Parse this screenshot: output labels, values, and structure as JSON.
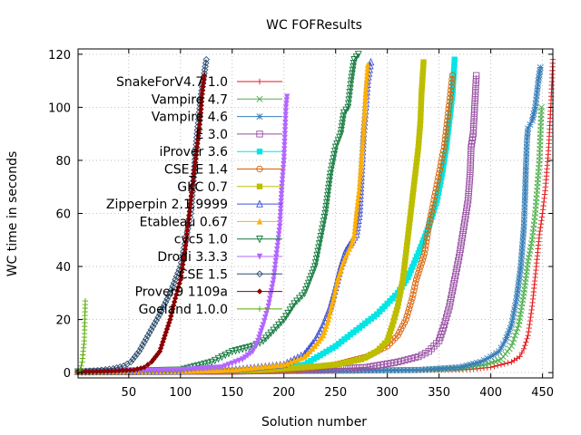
{
  "chart_data": {
    "type": "line",
    "title": "WC FOFResults",
    "xlabel": "Solution number",
    "ylabel": "WC time in seconds",
    "xlim": [
      1,
      460
    ],
    "ylim": [
      -2,
      122
    ],
    "xticks": [
      50,
      100,
      150,
      200,
      250,
      300,
      350,
      400,
      450
    ],
    "yticks": [
      0,
      20,
      40,
      60,
      80,
      100,
      120
    ],
    "grid": true,
    "legend_position": "top-left",
    "series": [
      {
        "name": "SnakeForV4.7 1.0",
        "color": "#e41a1c",
        "marker": "plus",
        "points": [
          [
            1,
            0.3
          ],
          [
            100,
            0.5
          ],
          [
            200,
            0.6
          ],
          [
            300,
            0.8
          ],
          [
            380,
            1.2
          ],
          [
            400,
            2
          ],
          [
            410,
            3
          ],
          [
            420,
            4
          ],
          [
            428,
            6
          ],
          [
            432,
            9
          ],
          [
            436,
            14
          ],
          [
            440,
            25
          ],
          [
            444,
            40
          ],
          [
            447,
            52
          ],
          [
            450,
            60
          ],
          [
            453,
            70
          ],
          [
            456,
            85
          ],
          [
            458,
            100
          ],
          [
            460,
            118
          ]
        ]
      },
      {
        "name": "Vampire 4.7",
        "color": "#4daf4a",
        "marker": "x",
        "points": [
          [
            1,
            0.3
          ],
          [
            150,
            0.5
          ],
          [
            250,
            0.7
          ],
          [
            330,
            1
          ],
          [
            370,
            1.5
          ],
          [
            395,
            3
          ],
          [
            410,
            5
          ],
          [
            420,
            10
          ],
          [
            427,
            18
          ],
          [
            432,
            30
          ],
          [
            436,
            42
          ],
          [
            440,
            50
          ],
          [
            443,
            60
          ],
          [
            445,
            70
          ],
          [
            447,
            80
          ],
          [
            448,
            90
          ],
          [
            449,
            100
          ]
        ]
      },
      {
        "name": "Vampire 4.6",
        "color": "#377eb8",
        "marker": "star",
        "points": [
          [
            1,
            0.3
          ],
          [
            150,
            0.5
          ],
          [
            250,
            0.7
          ],
          [
            330,
            1
          ],
          [
            370,
            2
          ],
          [
            390,
            4
          ],
          [
            400,
            6
          ],
          [
            408,
            8
          ],
          [
            414,
            12
          ],
          [
            420,
            18
          ],
          [
            425,
            28
          ],
          [
            429,
            40
          ],
          [
            432,
            55
          ],
          [
            433,
            65
          ],
          [
            434,
            78
          ],
          [
            435,
            88
          ],
          [
            436,
            92
          ],
          [
            440,
            95
          ],
          [
            443,
            100
          ],
          [
            446,
            110
          ],
          [
            448,
            115
          ]
        ]
      },
      {
        "name": "E 3.0",
        "color": "#984ea3",
        "marker": "square",
        "points": [
          [
            1,
            0.3
          ],
          [
            150,
            0.5
          ],
          [
            230,
            1
          ],
          [
            280,
            2
          ],
          [
            310,
            4
          ],
          [
            330,
            6
          ],
          [
            340,
            8
          ],
          [
            350,
            12
          ],
          [
            355,
            18
          ],
          [
            360,
            25
          ],
          [
            365,
            35
          ],
          [
            370,
            45
          ],
          [
            374,
            55
          ],
          [
            378,
            65
          ],
          [
            380,
            75
          ],
          [
            381,
            85
          ],
          [
            383,
            90
          ],
          [
            386,
            112
          ]
        ]
      },
      {
        "name": "iProver 3.6",
        "color": "#00e5e5",
        "marker": "filled-square",
        "points": [
          [
            1,
            0.3
          ],
          [
            100,
            0.5
          ],
          [
            180,
            1
          ],
          [
            220,
            3
          ],
          [
            250,
            10
          ],
          [
            270,
            16
          ],
          [
            290,
            22
          ],
          [
            310,
            30
          ],
          [
            320,
            36
          ],
          [
            330,
            45
          ],
          [
            340,
            55
          ],
          [
            348,
            65
          ],
          [
            353,
            75
          ],
          [
            357,
            85
          ],
          [
            360,
            95
          ],
          [
            363,
            105
          ],
          [
            365,
            118
          ]
        ]
      },
      {
        "name": "CSE_E 1.4",
        "color": "#d95f02",
        "marker": "circle",
        "points": [
          [
            1,
            0.3
          ],
          [
            150,
            0.5
          ],
          [
            210,
            1
          ],
          [
            250,
            3
          ],
          [
            280,
            6
          ],
          [
            300,
            10
          ],
          [
            310,
            14
          ],
          [
            318,
            20
          ],
          [
            324,
            28
          ],
          [
            328,
            35
          ],
          [
            332,
            40
          ],
          [
            336,
            45
          ],
          [
            340,
            55
          ],
          [
            345,
            65
          ],
          [
            350,
            75
          ],
          [
            355,
            85
          ],
          [
            358,
            95
          ],
          [
            361,
            105
          ],
          [
            363,
            112
          ]
        ]
      },
      {
        "name": "GKC 0.7",
        "color": "#bebe00",
        "marker": "filled-square",
        "points": [
          [
            1,
            0.3
          ],
          [
            120,
            0.5
          ],
          [
            180,
            1
          ],
          [
            220,
            2
          ],
          [
            250,
            3
          ],
          [
            275,
            5
          ],
          [
            290,
            8
          ],
          [
            300,
            12
          ],
          [
            305,
            18
          ],
          [
            310,
            25
          ],
          [
            315,
            35
          ],
          [
            318,
            45
          ],
          [
            321,
            55
          ],
          [
            324,
            65
          ],
          [
            327,
            75
          ],
          [
            330,
            85
          ],
          [
            332,
            95
          ],
          [
            333,
            105
          ],
          [
            335,
            117
          ]
        ]
      },
      {
        "name": "Zipperpin 2.1.9999",
        "color": "#3f51d6",
        "marker": "triangle",
        "points": [
          [
            1,
            0.3
          ],
          [
            100,
            0.5
          ],
          [
            150,
            1
          ],
          [
            200,
            3
          ],
          [
            220,
            7
          ],
          [
            230,
            12
          ],
          [
            238,
            18
          ],
          [
            245,
            25
          ],
          [
            250,
            32
          ],
          [
            255,
            40
          ],
          [
            260,
            46
          ],
          [
            265,
            49
          ],
          [
            270,
            52
          ],
          [
            273,
            60
          ],
          [
            275,
            75
          ],
          [
            277,
            90
          ],
          [
            279,
            100
          ],
          [
            281,
            110
          ],
          [
            284,
            117
          ]
        ]
      },
      {
        "name": "Etableau 0.67",
        "color": "#ffb000",
        "marker": "filled-triangle",
        "points": [
          [
            1,
            0.3
          ],
          [
            100,
            0.5
          ],
          [
            150,
            1
          ],
          [
            200,
            3
          ],
          [
            220,
            6
          ],
          [
            230,
            10
          ],
          [
            238,
            14
          ],
          [
            243,
            20
          ],
          [
            248,
            28
          ],
          [
            252,
            35
          ],
          [
            256,
            40
          ],
          [
            260,
            44
          ],
          [
            265,
            48
          ],
          [
            268,
            52
          ],
          [
            270,
            60
          ],
          [
            273,
            70
          ],
          [
            275,
            80
          ],
          [
            277,
            90
          ],
          [
            279,
            105
          ],
          [
            281,
            116
          ]
        ]
      },
      {
        "name": "cvc5 1.0",
        "color": "#137a3e",
        "marker": "triangle-down",
        "points": [
          [
            1,
            0.3
          ],
          [
            100,
            1
          ],
          [
            130,
            4
          ],
          [
            150,
            8
          ],
          [
            170,
            10
          ],
          [
            180,
            12
          ],
          [
            190,
            16
          ],
          [
            200,
            20
          ],
          [
            210,
            26
          ],
          [
            220,
            30
          ],
          [
            230,
            40
          ],
          [
            235,
            50
          ],
          [
            240,
            60
          ],
          [
            245,
            75
          ],
          [
            250,
            85
          ],
          [
            255,
            90
          ],
          [
            258,
            98
          ],
          [
            262,
            100
          ],
          [
            265,
            110
          ],
          [
            268,
            118
          ],
          [
            272,
            120
          ]
        ]
      },
      {
        "name": "Drodi 3.3.3",
        "color": "#b266ff",
        "marker": "filled-triangle-down",
        "points": [
          [
            1,
            0.3
          ],
          [
            100,
            1
          ],
          [
            140,
            2
          ],
          [
            160,
            5
          ],
          [
            170,
            8
          ],
          [
            175,
            12
          ],
          [
            180,
            18
          ],
          [
            185,
            25
          ],
          [
            190,
            35
          ],
          [
            193,
            45
          ],
          [
            196,
            55
          ],
          [
            198,
            70
          ],
          [
            200,
            80
          ],
          [
            201,
            90
          ],
          [
            202,
            100
          ],
          [
            203,
            104
          ]
        ]
      },
      {
        "name": "CSE 1.5",
        "color": "#2f4f6f",
        "marker": "diamond",
        "points": [
          [
            1,
            0.3
          ],
          [
            20,
            0.8
          ],
          [
            35,
            1.5
          ],
          [
            45,
            2.5
          ],
          [
            52,
            4
          ],
          [
            60,
            8
          ],
          [
            70,
            15
          ],
          [
            80,
            22
          ],
          [
            90,
            30
          ],
          [
            100,
            40
          ],
          [
            105,
            50
          ],
          [
            110,
            60
          ],
          [
            113,
            75
          ],
          [
            116,
            90
          ],
          [
            120,
            105
          ],
          [
            125,
            118
          ]
        ]
      },
      {
        "name": "Prover9 1109a",
        "color": "#8b0000",
        "marker": "filled-diamond",
        "points": [
          [
            1,
            0.3
          ],
          [
            30,
            0.5
          ],
          [
            55,
            1
          ],
          [
            65,
            2
          ],
          [
            72,
            4
          ],
          [
            80,
            8
          ],
          [
            85,
            14
          ],
          [
            90,
            20
          ],
          [
            95,
            28
          ],
          [
            100,
            35
          ],
          [
            104,
            45
          ],
          [
            107,
            55
          ],
          [
            110,
            65
          ],
          [
            113,
            75
          ],
          [
            116,
            85
          ],
          [
            119,
            95
          ],
          [
            121,
            105
          ],
          [
            123,
            112
          ]
        ]
      },
      {
        "name": "Goeland 1.0.0",
        "color": "#55aa00",
        "marker": "plus",
        "points": [
          [
            1,
            0.3
          ],
          [
            3,
            1
          ],
          [
            5,
            4
          ],
          [
            6,
            8
          ],
          [
            7,
            12
          ],
          [
            8,
            27
          ]
        ]
      }
    ]
  }
}
